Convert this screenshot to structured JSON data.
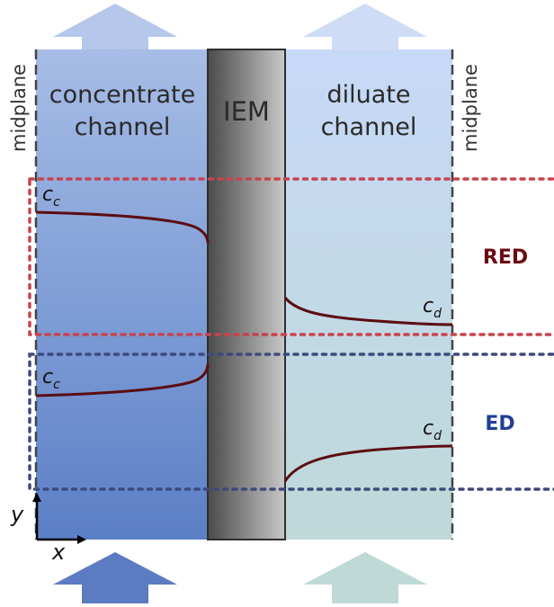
{
  "colors": {
    "concentrate_top": "#a7bde6",
    "concentrate_bottom": "#5b7fc6",
    "diluate_top": "#c6d9f7",
    "diluate_bottom": "#bed9d8",
    "membrane_dark": "#4a4a4a",
    "membrane_light": "#c8c8c8",
    "red_dotted": "#c9434d",
    "blue_dotted": "#3d4a7c",
    "profile_curve": "#5b0d12",
    "red_label": "#6b0b12",
    "ed_label": "#1f3f96"
  },
  "labels": {
    "concentrate_line1": "concentrate",
    "concentrate_line2": "channel",
    "diluate_line1": "diluate",
    "diluate_line2": "channel",
    "membrane": "IEM",
    "midplane_left": "midplane",
    "midplane_right": "midplane",
    "red": "RED",
    "ed": "ED",
    "c_symbol": "c",
    "c_conc_sub": "c",
    "c_dil_sub": "d",
    "axis_x": "x",
    "axis_y": "y"
  },
  "icons": {
    "flow_arrows": "block-arrow-up-icon",
    "axes": "coordinate-axes-icon"
  }
}
